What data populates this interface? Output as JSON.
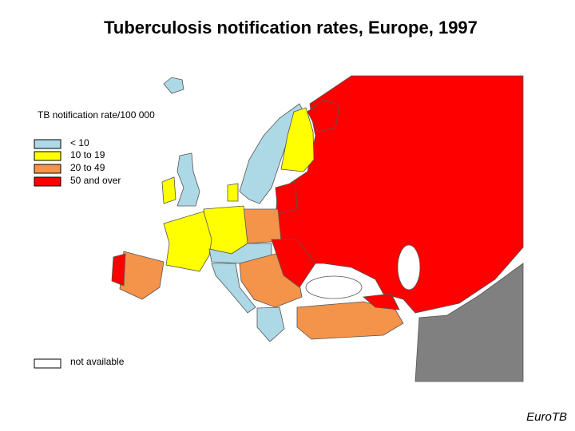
{
  "title": "Tuberculosis notification rates, Europe, 1997",
  "legend": {
    "title": "TB notification rate/100 000",
    "items": [
      {
        "label": "< 10",
        "color": "#add8e6"
      },
      {
        "label": "10 to 19",
        "color": "#ffff00"
      },
      {
        "label": "20 to 49",
        "color": "#f4934a"
      },
      {
        "label": "50 and over",
        "color": "#ff0000"
      }
    ],
    "not_available": {
      "label": "not available",
      "color": "#ffffff"
    }
  },
  "credit": "EuroTB"
}
